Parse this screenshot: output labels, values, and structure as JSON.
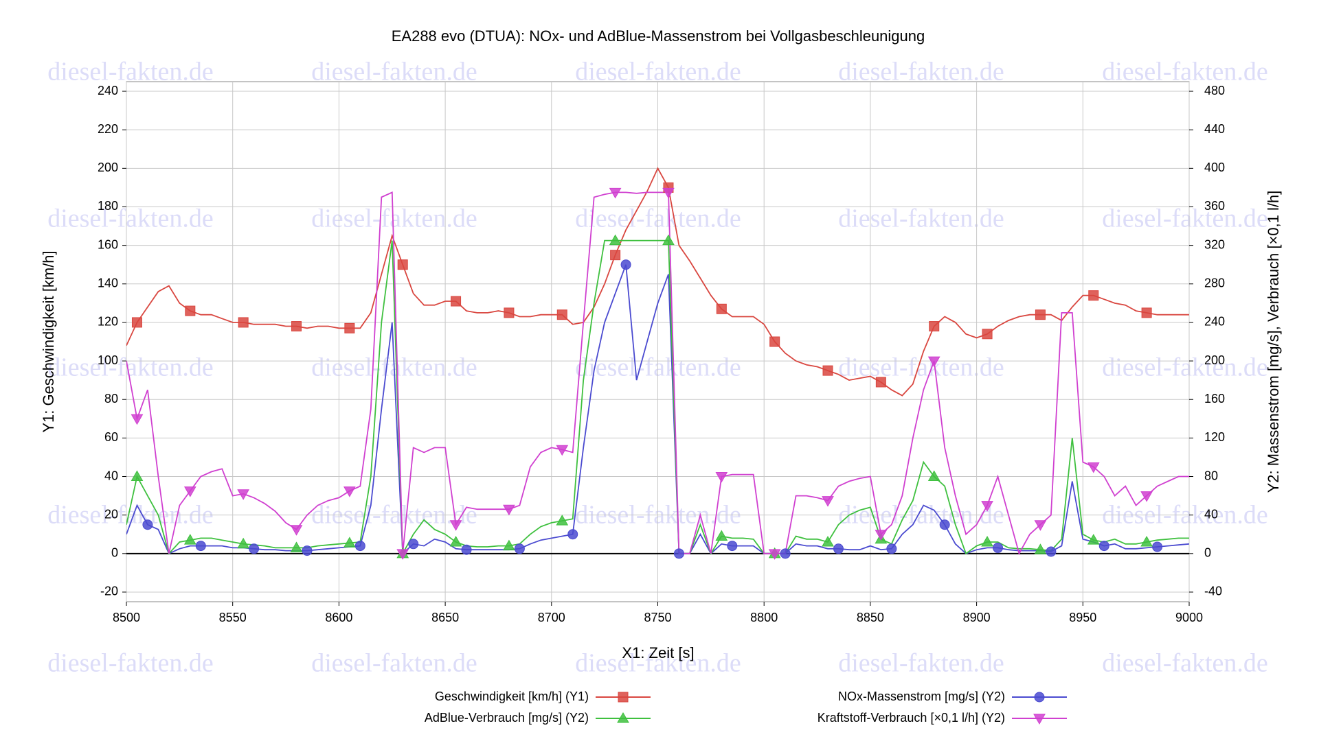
{
  "chart_data": {
    "type": "line",
    "title": "EA288 evo (DTUA): NOx- und AdBlue-Massenstrom bei Vollgasbeschleunigung",
    "watermark": "diesel-fakten.de",
    "xlabel": "X1: Zeit [s]",
    "ylabel": "Y1: Geschwindigkeit [km/h]",
    "y2label": "Y2: Massenstrom [mg/s], Verbrauch [×0,1 l/h]",
    "xlim": [
      8500,
      9000
    ],
    "xticks": [
      8500,
      8550,
      8600,
      8650,
      8700,
      8750,
      8800,
      8850,
      8900,
      8950,
      9000
    ],
    "ylim": [
      -25,
      245
    ],
    "yticks": [
      -20,
      0,
      20,
      40,
      60,
      80,
      100,
      120,
      140,
      160,
      180,
      200,
      220,
      240
    ],
    "y2lim": [
      -50,
      490
    ],
    "y2ticks": [
      -40,
      0,
      40,
      80,
      120,
      160,
      200,
      240,
      280,
      320,
      360,
      400,
      440,
      480
    ],
    "grid": true,
    "x": [
      8500,
      8505,
      8510,
      8515,
      8520,
      8525,
      8530,
      8535,
      8540,
      8545,
      8550,
      8555,
      8560,
      8565,
      8570,
      8575,
      8580,
      8585,
      8590,
      8595,
      8600,
      8605,
      8610,
      8615,
      8620,
      8625,
      8630,
      8635,
      8640,
      8645,
      8650,
      8655,
      8660,
      8665,
      8670,
      8675,
      8680,
      8685,
      8690,
      8695,
      8700,
      8705,
      8710,
      8715,
      8720,
      8725,
      8730,
      8735,
      8740,
      8745,
      8750,
      8755,
      8760,
      8765,
      8770,
      8775,
      8780,
      8785,
      8790,
      8795,
      8800,
      8805,
      8810,
      8815,
      8820,
      8825,
      8830,
      8835,
      8840,
      8845,
      8850,
      8855,
      8860,
      8865,
      8870,
      8875,
      8880,
      8885,
      8890,
      8895,
      8900,
      8905,
      8910,
      8915,
      8920,
      8925,
      8930,
      8935,
      8940,
      8945,
      8950,
      8955,
      8960,
      8965,
      8970,
      8975,
      8980,
      8985,
      8990,
      8995,
      9000
    ],
    "series": [
      {
        "name": "Geschwindigkeit [km/h] (Y1)",
        "color": "#d9463f",
        "marker": "square",
        "axis": "y",
        "values": [
          108,
          120,
          128,
          136,
          139,
          130,
          126,
          124,
          124,
          122,
          120,
          120,
          119,
          119,
          119,
          118,
          118,
          117,
          118,
          118,
          117,
          117,
          117,
          125,
          145,
          165,
          150,
          135,
          129,
          129,
          131,
          131,
          126,
          125,
          125,
          126,
          125,
          123,
          123,
          124,
          124,
          124,
          119,
          120,
          128,
          140,
          155,
          168,
          178,
          188,
          200,
          190,
          160,
          152,
          143,
          134,
          127,
          123,
          123,
          123,
          119,
          110,
          104,
          100,
          98,
          97,
          95,
          93,
          90,
          91,
          92,
          89,
          85,
          82,
          88,
          105,
          118,
          123,
          120,
          114,
          112,
          114,
          118,
          121,
          123,
          124,
          124,
          124,
          121,
          128,
          134,
          134,
          132,
          130,
          129,
          126,
          125,
          124,
          124,
          124,
          124
        ]
      },
      {
        "name": "NOx-Massenstrom [mg/s] (Y2)",
        "color": "#4a4ad0",
        "marker": "circle",
        "axis": "y2",
        "values": [
          20,
          50,
          30,
          25,
          0,
          5,
          8,
          8,
          8,
          8,
          6,
          6,
          5,
          4,
          4,
          3,
          3,
          3,
          4,
          5,
          6,
          7,
          8,
          50,
          150,
          240,
          0,
          10,
          8,
          15,
          12,
          5,
          4,
          4,
          4,
          4,
          4,
          5,
          10,
          14,
          16,
          18,
          20,
          110,
          190,
          240,
          270,
          300,
          180,
          220,
          260,
          290,
          0,
          0,
          20,
          0,
          10,
          8,
          8,
          8,
          0,
          0,
          0,
          10,
          8,
          8,
          5,
          5,
          4,
          4,
          8,
          4,
          5,
          20,
          30,
          50,
          45,
          30,
          10,
          0,
          4,
          6,
          6,
          4,
          3,
          3,
          3,
          2,
          8,
          75,
          15,
          12,
          8,
          10,
          5,
          5,
          6,
          7,
          8,
          9,
          10
        ]
      },
      {
        "name": "AdBlue-Verbrauch [mg/s] (Y2)",
        "color": "#3ec03e",
        "marker": "triangle-up",
        "axis": "y2",
        "values": [
          30,
          80,
          60,
          40,
          0,
          12,
          14,
          16,
          16,
          14,
          12,
          10,
          9,
          8,
          6,
          6,
          6,
          6,
          8,
          9,
          10,
          11,
          12,
          80,
          240,
          325,
          0,
          20,
          35,
          25,
          20,
          12,
          8,
          7,
          7,
          8,
          8,
          10,
          20,
          28,
          32,
          34,
          36,
          180,
          260,
          325,
          325,
          325,
          325,
          325,
          325,
          325,
          0,
          0,
          30,
          0,
          18,
          16,
          16,
          15,
          0,
          0,
          0,
          18,
          15,
          15,
          12,
          30,
          40,
          45,
          48,
          15,
          10,
          35,
          55,
          95,
          80,
          70,
          30,
          0,
          8,
          12,
          12,
          6,
          5,
          5,
          4,
          3,
          15,
          120,
          20,
          14,
          12,
          15,
          10,
          10,
          12,
          14,
          15,
          16,
          16
        ]
      },
      {
        "name": "Kraftstoff-Verbrauch [×0,1 l/h] (Y2)",
        "color": "#d040d0",
        "marker": "triangle-down",
        "axis": "y2",
        "values": [
          200,
          140,
          170,
          80,
          0,
          50,
          65,
          80,
          85,
          88,
          60,
          62,
          58,
          52,
          44,
          32,
          25,
          40,
          50,
          55,
          58,
          65,
          70,
          150,
          370,
          375,
          0,
          110,
          105,
          110,
          110,
          30,
          48,
          46,
          46,
          46,
          46,
          50,
          90,
          105,
          110,
          108,
          105,
          240,
          370,
          373,
          375,
          375,
          374,
          375,
          375,
          375,
          0,
          0,
          40,
          0,
          80,
          82,
          82,
          82,
          0,
          0,
          0,
          60,
          60,
          58,
          55,
          70,
          75,
          78,
          80,
          20,
          30,
          60,
          120,
          170,
          200,
          110,
          60,
          20,
          30,
          50,
          80,
          40,
          0,
          20,
          30,
          40,
          250,
          250,
          95,
          90,
          80,
          60,
          70,
          50,
          60,
          70,
          75,
          80,
          80
        ]
      }
    ]
  }
}
